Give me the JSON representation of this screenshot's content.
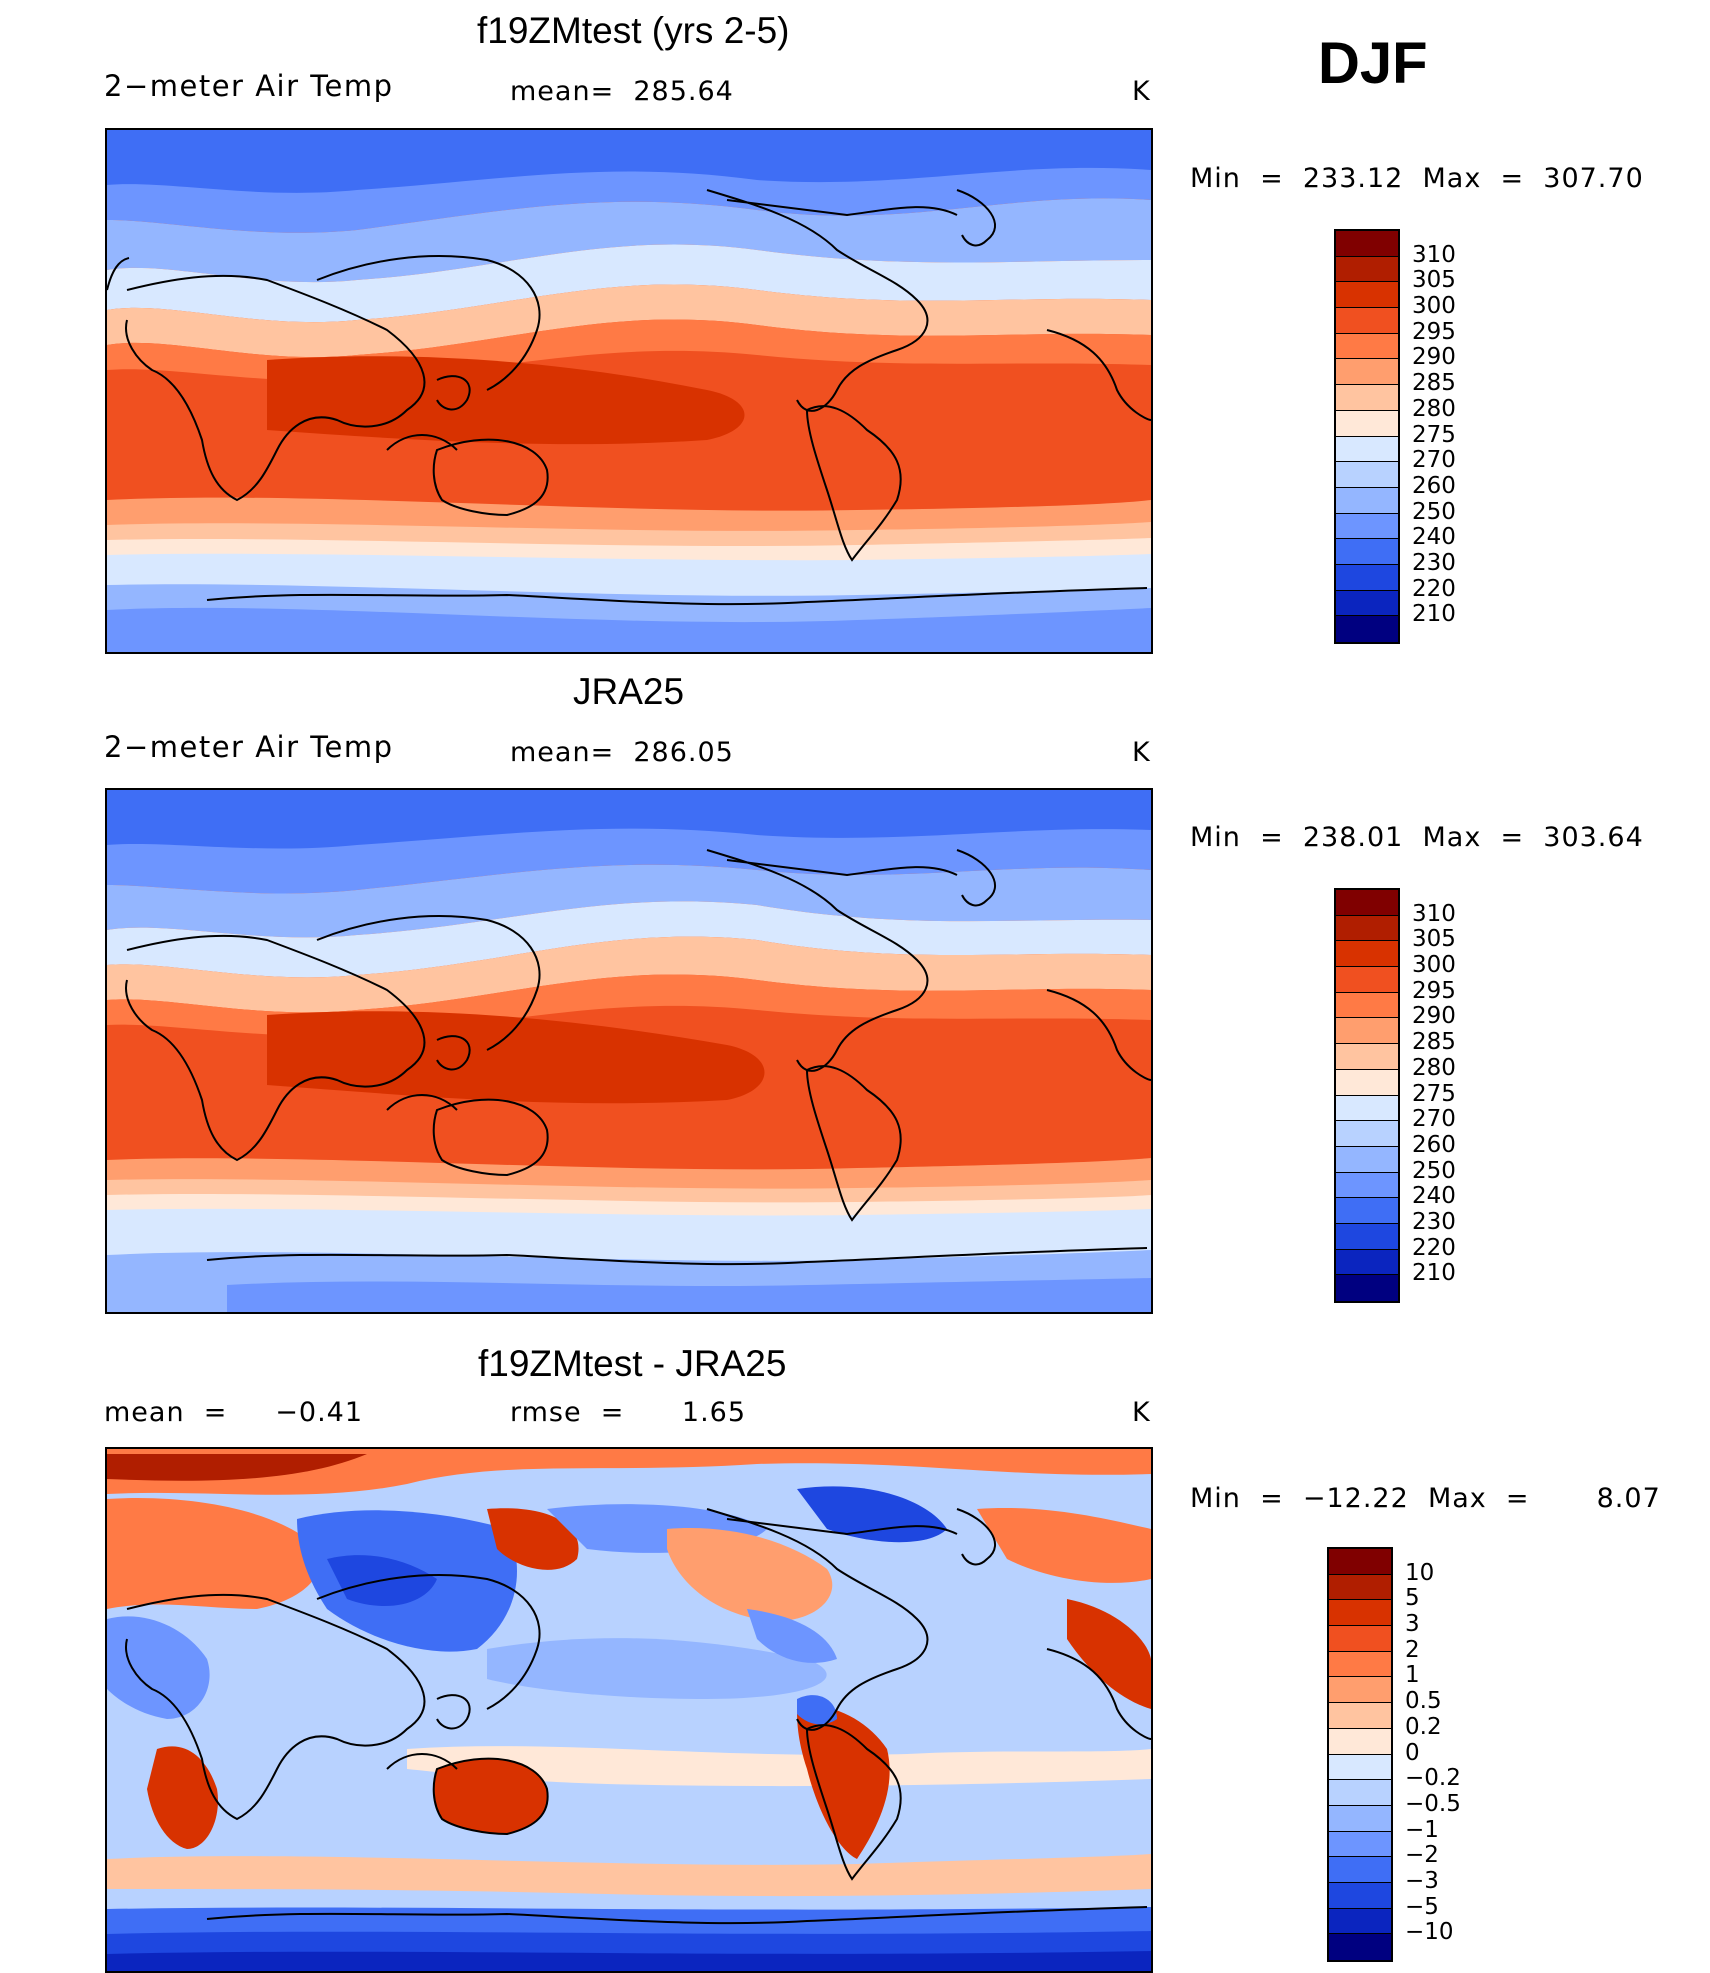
{
  "season": "DJF",
  "panels": [
    {
      "title": "f19ZMtest (yrs 2-5)",
      "left_text": "2−meter Air Temp",
      "center_text": "mean=  285.64",
      "units": "K",
      "minmax": "Min  =  233.12  Max  =  307.70",
      "scale": "abs",
      "colorbar_labels": [
        "310",
        "305",
        "300",
        "295",
        "290",
        "285",
        "280",
        "275",
        "270",
        "260",
        "250",
        "240",
        "230",
        "220",
        "210"
      ]
    },
    {
      "title": "JRA25",
      "left_text": "2−meter Air Temp",
      "center_text": "mean=  286.05",
      "units": "K",
      "minmax": "Min  =  238.01  Max  =  303.64",
      "scale": "abs",
      "colorbar_labels": [
        "310",
        "305",
        "300",
        "295",
        "290",
        "285",
        "280",
        "275",
        "270",
        "260",
        "250",
        "240",
        "230",
        "220",
        "210"
      ]
    },
    {
      "title": "f19ZMtest - JRA25",
      "left_text": "mean  =     −0.41",
      "center_text": "rmse  =      1.65",
      "units": "K",
      "minmax": "Min  =  −12.22  Max  =       8.07",
      "scale": "diff",
      "colorbar_labels": [
        "10",
        "5",
        "3",
        "2",
        "1",
        "0.5",
        "0.2",
        "0",
        "−0.2",
        "−0.5",
        "−1",
        "−2",
        "−3",
        "−5",
        "−10"
      ]
    }
  ],
  "colors": {
    "abs": [
      "#800000",
      "#b01e00",
      "#d83200",
      "#f05020",
      "#ff7a45",
      "#ff9e6e",
      "#ffc4a0",
      "#ffe8d8",
      "#d8e8ff",
      "#b8d2ff",
      "#94b6ff",
      "#6d95ff",
      "#3f6ef5",
      "#1e47e0",
      "#0b25bf",
      "#000080"
    ],
    "diff": [
      "#800000",
      "#b01e00",
      "#d83200",
      "#f05020",
      "#ff7a45",
      "#ff9e6e",
      "#ffc4a0",
      "#ffe8d8",
      "#d8e8ff",
      "#b8d2ff",
      "#94b6ff",
      "#6d95ff",
      "#3f6ef5",
      "#1e47e0",
      "#0b25bf",
      "#000080"
    ]
  }
}
